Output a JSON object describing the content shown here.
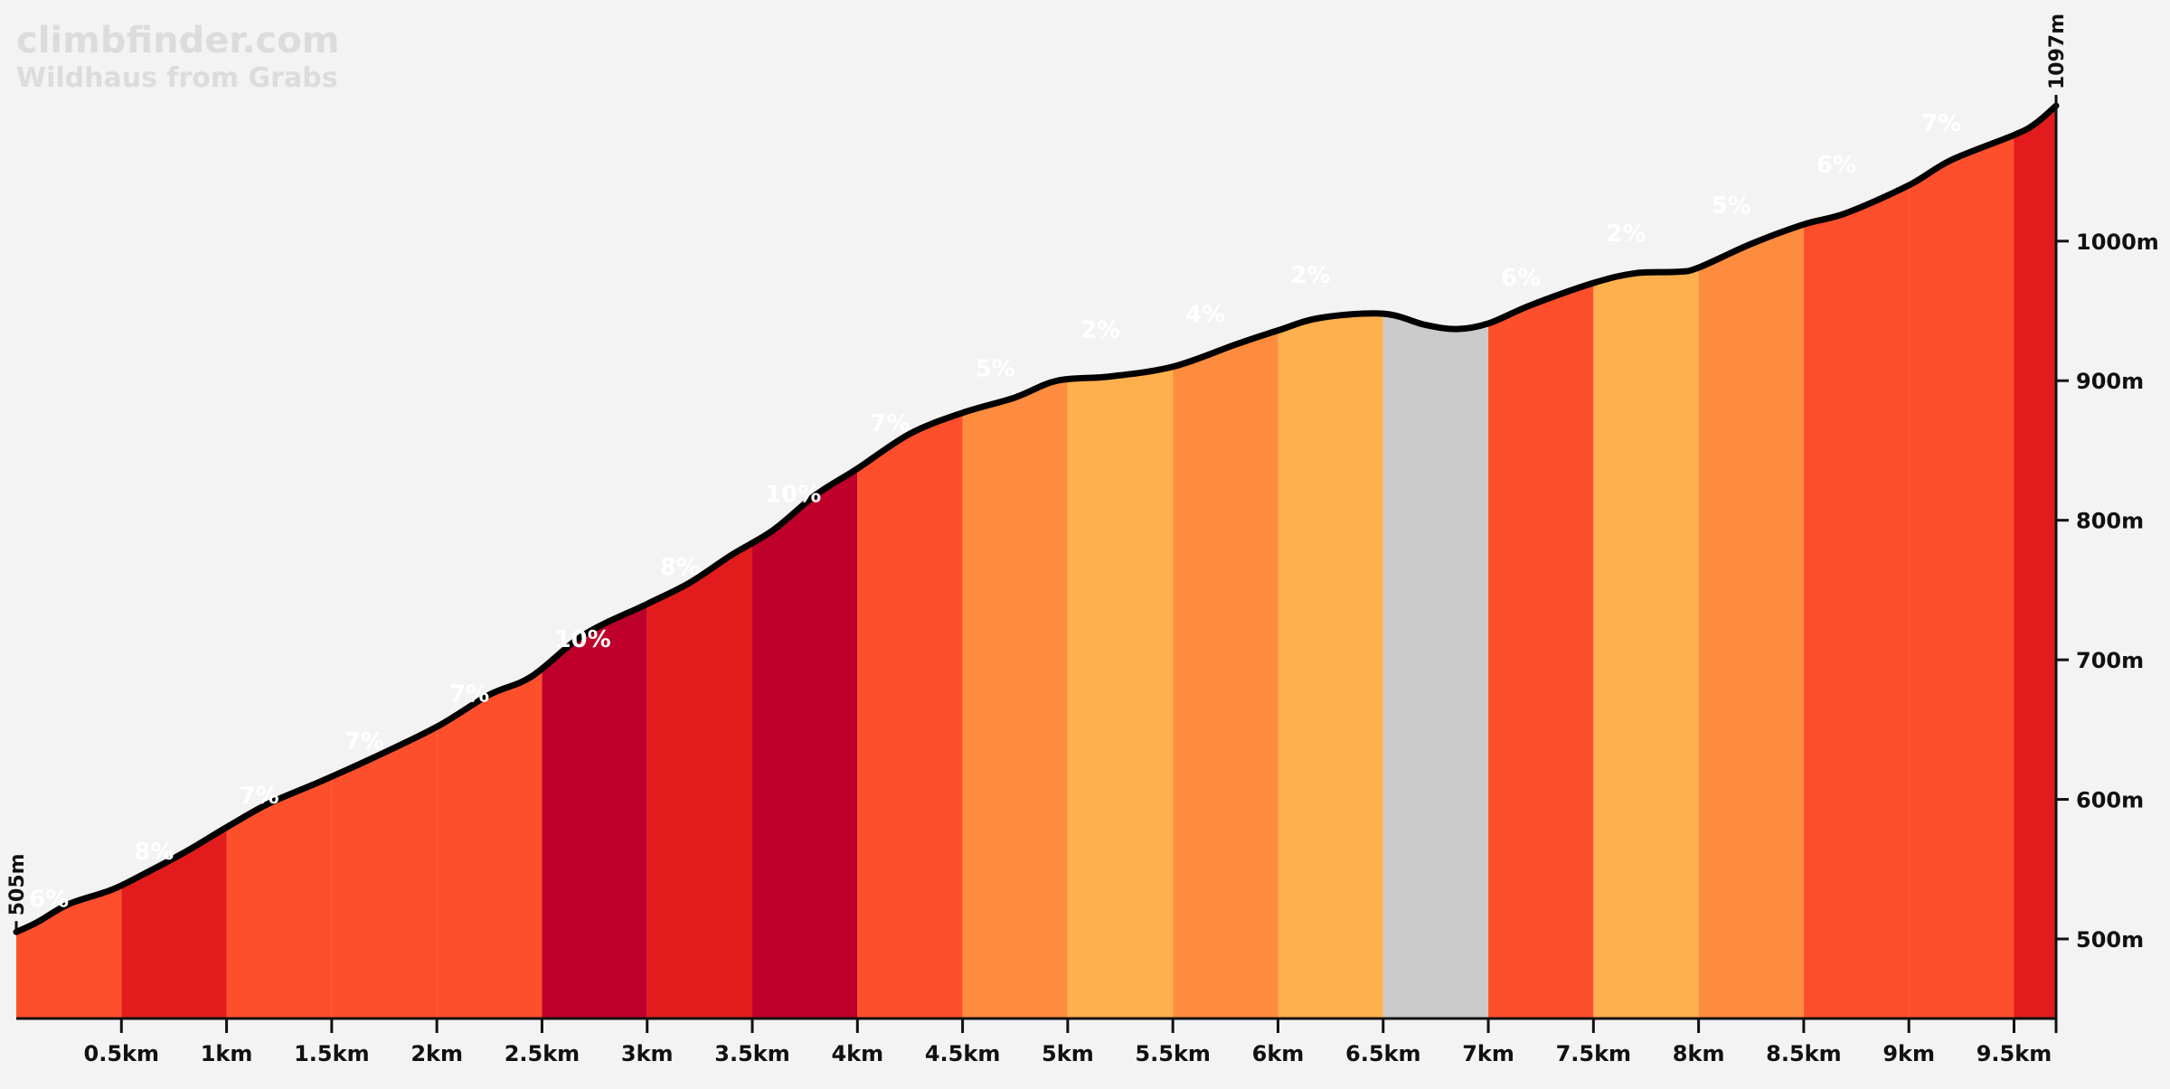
{
  "site": {
    "name": "climbfinder.com",
    "climb": "Wildhaus from Grabs"
  },
  "chart_data": {
    "type": "area",
    "title": "Wildhaus from Grabs",
    "xlabel": "",
    "ylabel": "",
    "xlim": [
      0,
      9.7
    ],
    "ylim": [
      443,
      1097
    ],
    "start_label": "505m",
    "end_label": "1097m",
    "x_ticks": [
      {
        "value": 0.5,
        "label": "0.5km"
      },
      {
        "value": 1,
        "label": "1km"
      },
      {
        "value": 1.5,
        "label": "1.5km"
      },
      {
        "value": 2,
        "label": "2km"
      },
      {
        "value": 2.5,
        "label": "2.5km"
      },
      {
        "value": 3,
        "label": "3km"
      },
      {
        "value": 3.5,
        "label": "3.5km"
      },
      {
        "value": 4,
        "label": "4km"
      },
      {
        "value": 4.5,
        "label": "4.5km"
      },
      {
        "value": 5,
        "label": "5km"
      },
      {
        "value": 5.5,
        "label": "5.5km"
      },
      {
        "value": 6,
        "label": "6km"
      },
      {
        "value": 6.5,
        "label": "6.5km"
      },
      {
        "value": 7,
        "label": "7km"
      },
      {
        "value": 7.5,
        "label": "7.5km"
      },
      {
        "value": 8,
        "label": "8km"
      },
      {
        "value": 8.5,
        "label": "8.5km"
      },
      {
        "value": 9,
        "label": "9km"
      },
      {
        "value": 9.5,
        "label": "9.5km"
      }
    ],
    "y_ticks": [
      {
        "value": 500,
        "label": "500m"
      },
      {
        "value": 600,
        "label": "600m"
      },
      {
        "value": 700,
        "label": "700m"
      },
      {
        "value": 800,
        "label": "800m"
      },
      {
        "value": 900,
        "label": "900m"
      },
      {
        "value": 1000,
        "label": "1000m"
      }
    ],
    "profile": [
      {
        "x": 0,
        "y": 505
      },
      {
        "x": 0.1,
        "y": 512
      },
      {
        "x": 0.25,
        "y": 525
      },
      {
        "x": 0.45,
        "y": 535
      },
      {
        "x": 0.6,
        "y": 546
      },
      {
        "x": 0.8,
        "y": 562
      },
      {
        "x": 1,
        "y": 580
      },
      {
        "x": 1.2,
        "y": 597
      },
      {
        "x": 1.45,
        "y": 613
      },
      {
        "x": 1.7,
        "y": 630
      },
      {
        "x": 2,
        "y": 652
      },
      {
        "x": 2.25,
        "y": 675
      },
      {
        "x": 2.45,
        "y": 688
      },
      {
        "x": 2.7,
        "y": 718
      },
      {
        "x": 3,
        "y": 740
      },
      {
        "x": 3.2,
        "y": 755
      },
      {
        "x": 3.4,
        "y": 775
      },
      {
        "x": 3.6,
        "y": 793
      },
      {
        "x": 3.8,
        "y": 818
      },
      {
        "x": 4,
        "y": 837
      },
      {
        "x": 4.25,
        "y": 862
      },
      {
        "x": 4.5,
        "y": 877
      },
      {
        "x": 4.75,
        "y": 888
      },
      {
        "x": 4.95,
        "y": 900
      },
      {
        "x": 5.2,
        "y": 903
      },
      {
        "x": 5.5,
        "y": 910
      },
      {
        "x": 5.8,
        "y": 926
      },
      {
        "x": 6,
        "y": 936
      },
      {
        "x": 6.2,
        "y": 945
      },
      {
        "x": 6.5,
        "y": 948
      },
      {
        "x": 6.7,
        "y": 940
      },
      {
        "x": 6.85,
        "y": 937
      },
      {
        "x": 7,
        "y": 941
      },
      {
        "x": 7.2,
        "y": 954
      },
      {
        "x": 7.5,
        "y": 970
      },
      {
        "x": 7.7,
        "y": 977
      },
      {
        "x": 7.9,
        "y": 978
      },
      {
        "x": 8,
        "y": 981
      },
      {
        "x": 8.25,
        "y": 998
      },
      {
        "x": 8.5,
        "y": 1012
      },
      {
        "x": 8.7,
        "y": 1020
      },
      {
        "x": 9,
        "y": 1040
      },
      {
        "x": 9.2,
        "y": 1058
      },
      {
        "x": 9.5,
        "y": 1076
      },
      {
        "x": 9.6,
        "y": 1084
      },
      {
        "x": 9.7,
        "y": 1097
      }
    ],
    "segments": [
      {
        "start": 0,
        "end": 0.5,
        "grade": "6%",
        "color": "#fe4f2c",
        "label_elev": 523
      },
      {
        "start": 0.5,
        "end": 1,
        "grade": "8%",
        "color": "#e21c1c",
        "label_elev": 557
      },
      {
        "start": 1,
        "end": 1.5,
        "grade": "7%",
        "color": "#fe4f2c",
        "label_elev": 597
      },
      {
        "start": 1.5,
        "end": 2,
        "grade": "7%",
        "color": "#fe4f2c",
        "label_elev": 636
      },
      {
        "start": 2,
        "end": 2.5,
        "grade": "7%",
        "color": "#fe4f2c",
        "label_elev": 670
      },
      {
        "start": 2.5,
        "end": 3,
        "grade": "10%",
        "color": "#be002a",
        "label_elev": 709
      },
      {
        "start": 3,
        "end": 3.5,
        "grade": "8%",
        "color": "#e21c1c",
        "label_elev": 761
      },
      {
        "start": 3.5,
        "end": 4,
        "grade": "10%",
        "color": "#be002a",
        "label_elev": 813
      },
      {
        "start": 4,
        "end": 4.5,
        "grade": "7%",
        "color": "#fe4f2c",
        "label_elev": 864
      },
      {
        "start": 4.5,
        "end": 5,
        "grade": "5%",
        "color": "#fe8c3e",
        "label_elev": 903
      },
      {
        "start": 5,
        "end": 5.5,
        "grade": "2%",
        "color": "#feb04e",
        "label_elev": 931
      },
      {
        "start": 5.5,
        "end": 6,
        "grade": "4%",
        "color": "#fe8c3e",
        "label_elev": 942
      },
      {
        "start": 6,
        "end": 6.5,
        "grade": "2%",
        "color": "#feb04e",
        "label_elev": 970
      },
      {
        "start": 6.5,
        "end": 7,
        "grade": "",
        "color": "#cbcbcb",
        "label_elev": null
      },
      {
        "start": 7,
        "end": 7.5,
        "grade": "6%",
        "color": "#fe4f2c",
        "label_elev": 968
      },
      {
        "start": 7.5,
        "end": 8,
        "grade": "2%",
        "color": "#feb04e",
        "label_elev": 1000
      },
      {
        "start": 8,
        "end": 8.5,
        "grade": "5%",
        "color": "#fe8c3e",
        "label_elev": 1020
      },
      {
        "start": 8.5,
        "end": 9,
        "grade": "6%",
        "color": "#fe4f2c",
        "label_elev": 1049
      },
      {
        "start": 9,
        "end": 9.5,
        "grade": "7%",
        "color": "#fe4f2c",
        "label_elev": 1079
      },
      {
        "start": 9.5,
        "end": 9.7,
        "grade": "",
        "color": "#e21c1c",
        "label_elev": null
      }
    ],
    "line_color": "#000000"
  }
}
